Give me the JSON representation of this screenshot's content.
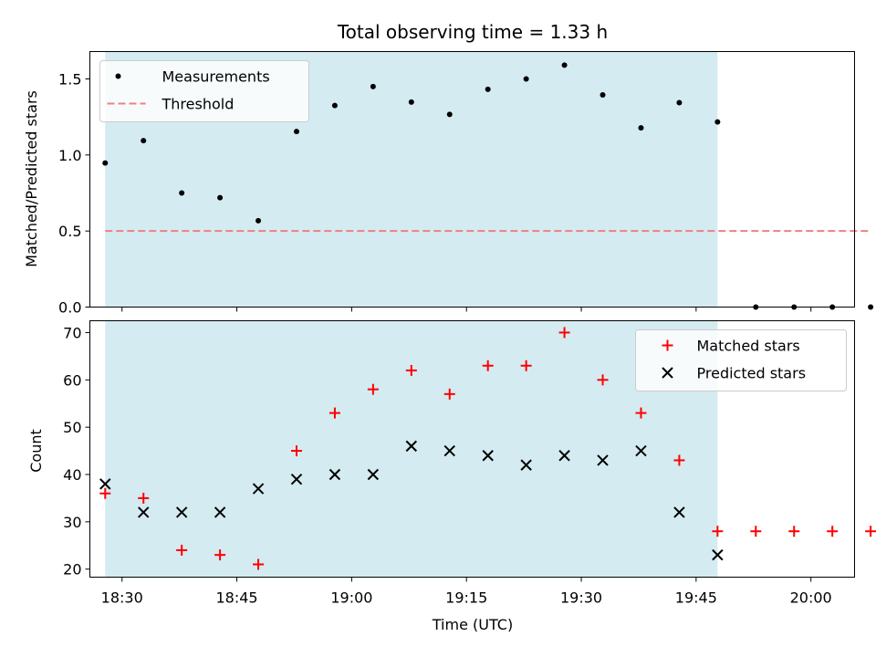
{
  "chart_data": {
    "title": "Total observing time = 1.33 h",
    "xlabel": "Time (UTC)",
    "x_ticks": [
      "18:30",
      "18:45",
      "19:00",
      "19:15",
      "19:30",
      "19:45",
      "20:00"
    ],
    "x_tick_minutes": [
      0,
      15,
      30,
      45,
      60,
      75,
      90
    ],
    "xlim_minutes": [
      -4.2,
      95.7
    ],
    "observing_window_minutes": [
      -2.2,
      77.8
    ],
    "colors": {
      "window": "#d4ebf1",
      "measurements": "#000000",
      "threshold": "#f08080",
      "matched": "#ff0000",
      "predicted": "#000000"
    },
    "panels": [
      {
        "type": "scatter",
        "ylabel": "Matched/Predicted stars",
        "ylim": [
          0,
          1.68
        ],
        "y_ticks": [
          "0.0",
          "0.5",
          "1.0",
          "1.5"
        ],
        "y_tick_values": [
          0,
          0.5,
          1.0,
          1.5
        ],
        "legend": "top-left",
        "series": [
          {
            "name": "Measurements",
            "kind": "dot",
            "x_minutes": [
              -2.2,
              2.8,
              7.8,
              12.8,
              17.8,
              22.8,
              27.8,
              32.8,
              37.8,
              42.8,
              47.8,
              52.8,
              57.8,
              62.8,
              67.8,
              72.8,
              77.8,
              82.8,
              87.8,
              92.8,
              97.8
            ],
            "y": [
              0.947,
              1.094,
              0.75,
              0.719,
              0.568,
              1.154,
              1.325,
              1.45,
              1.348,
              1.267,
              1.432,
              1.5,
              1.591,
              1.395,
              1.178,
              1.344,
              1.217,
              0,
              0,
              0,
              0
            ]
          },
          {
            "name": "Threshold",
            "kind": "dashed-line",
            "x_minutes": [
              -2.2,
              97.8
            ],
            "y": [
              0.5,
              0.5
            ]
          }
        ]
      },
      {
        "type": "scatter",
        "ylabel": "Count",
        "ylim": [
          18.3,
          72.5
        ],
        "y_ticks": [
          "20",
          "30",
          "40",
          "50",
          "60",
          "70"
        ],
        "y_tick_values": [
          20,
          30,
          40,
          50,
          60,
          70
        ],
        "legend": "top-right",
        "series": [
          {
            "name": "Matched stars",
            "kind": "plus",
            "x_minutes": [
              -2.2,
              2.8,
              7.8,
              12.8,
              17.8,
              22.8,
              27.8,
              32.8,
              37.8,
              42.8,
              47.8,
              52.8,
              57.8,
              62.8,
              67.8,
              72.8,
              77.8,
              82.8,
              87.8,
              92.8,
              97.8
            ],
            "y": [
              36,
              35,
              24,
              23,
              21,
              45,
              53,
              58,
              62,
              57,
              63,
              63,
              70,
              60,
              53,
              43,
              28,
              28,
              28,
              28,
              28
            ]
          },
          {
            "name": "Predicted stars",
            "kind": "x",
            "x_minutes": [
              -2.2,
              2.8,
              7.8,
              12.8,
              17.8,
              22.8,
              27.8,
              32.8,
              37.8,
              42.8,
              47.8,
              52.8,
              57.8,
              62.8,
              67.8,
              72.8,
              77.8
            ],
            "y": [
              38,
              32,
              32,
              32,
              37,
              39,
              40,
              40,
              46,
              45,
              44,
              42,
              44,
              43,
              45,
              32,
              23
            ]
          }
        ]
      }
    ]
  }
}
